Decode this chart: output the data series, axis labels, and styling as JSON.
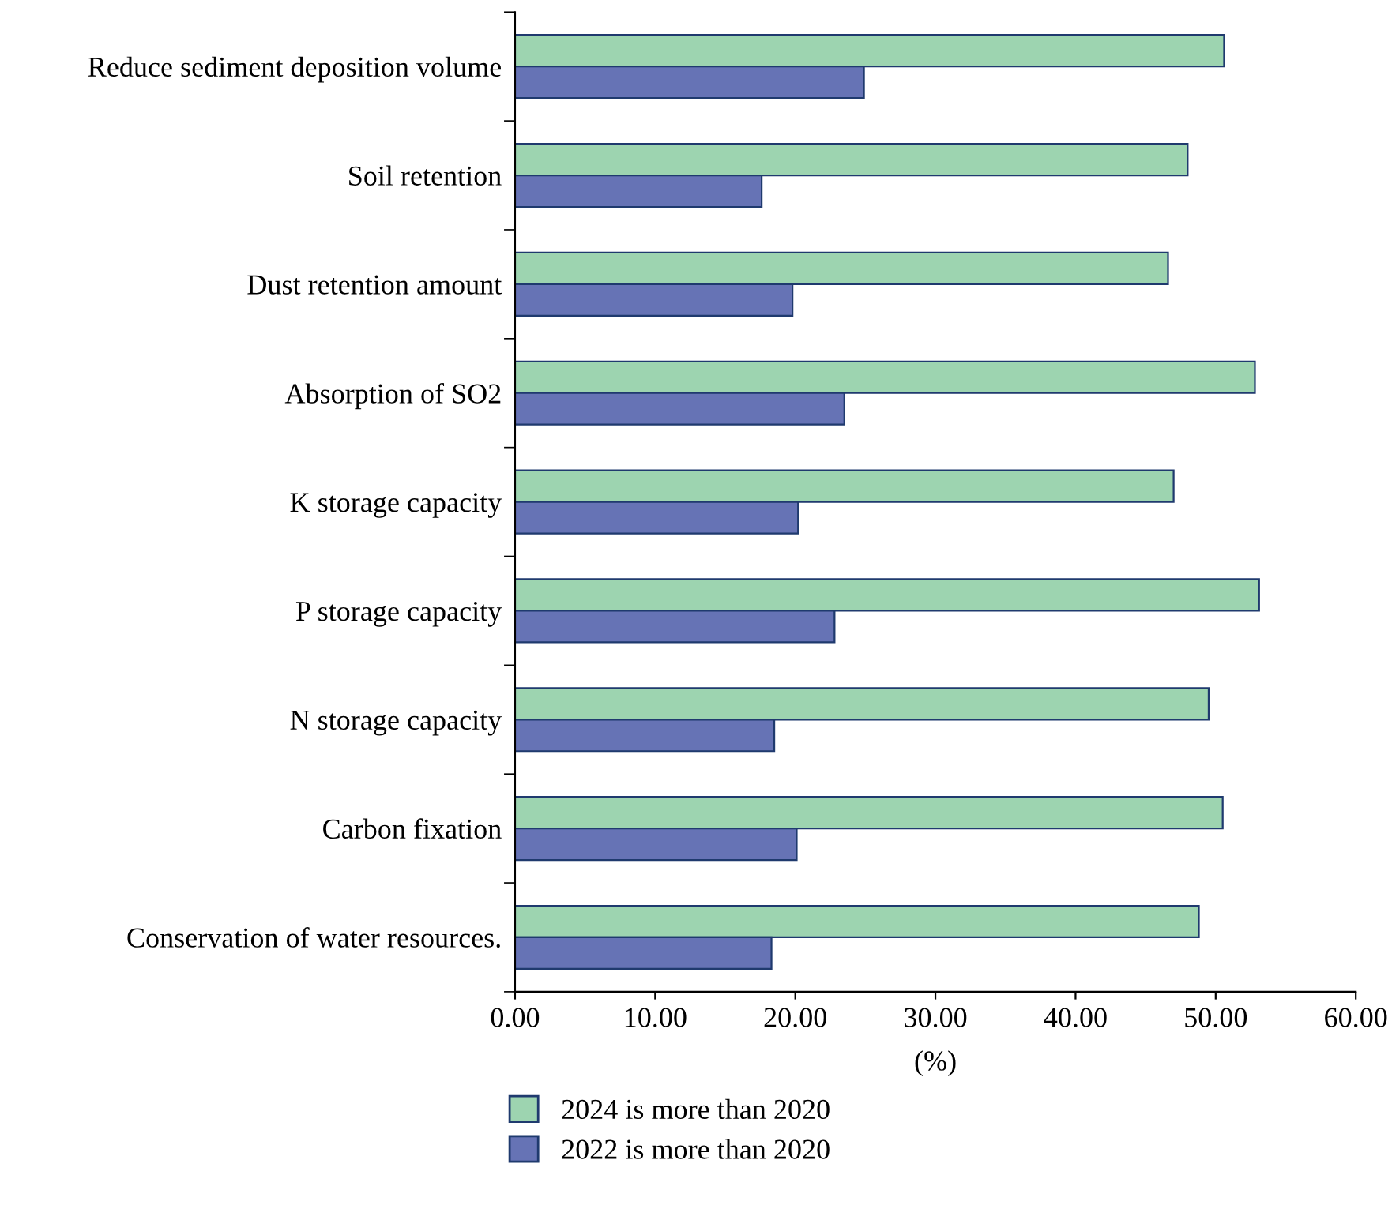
{
  "chart_data": {
    "type": "bar",
    "orientation": "horizontal",
    "xlabel": "(%)",
    "categories": [
      "Reduce sediment deposition volume",
      "Soil retention",
      "Dust retention amount",
      "Absorption of SO2",
      "K storage capacity",
      "P storage capacity",
      "N storage capacity",
      "Carbon fixation",
      "Conservation of water resources."
    ],
    "series": [
      {
        "name": "2024 is more than 2020",
        "color": "#9dd4b0",
        "values": [
          50.6,
          48.0,
          46.6,
          52.8,
          47.0,
          53.1,
          49.5,
          50.5,
          48.8
        ]
      },
      {
        "name": "2022 is more than 2020",
        "color": "#6673b5",
        "values": [
          24.9,
          17.6,
          19.8,
          23.5,
          20.2,
          22.8,
          18.5,
          20.1,
          18.3
        ]
      }
    ],
    "xlim": [
      0,
      60
    ],
    "xticks": [
      {
        "value": 0,
        "label": "0.00"
      },
      {
        "value": 10,
        "label": "10.00"
      },
      {
        "value": 20,
        "label": "20.00"
      },
      {
        "value": 30,
        "label": "30.00"
      },
      {
        "value": 40,
        "label": "40.00"
      },
      {
        "value": 50,
        "label": "50.00"
      },
      {
        "value": 60,
        "label": "60.00"
      }
    ],
    "grid": false,
    "legend": "bottom"
  }
}
